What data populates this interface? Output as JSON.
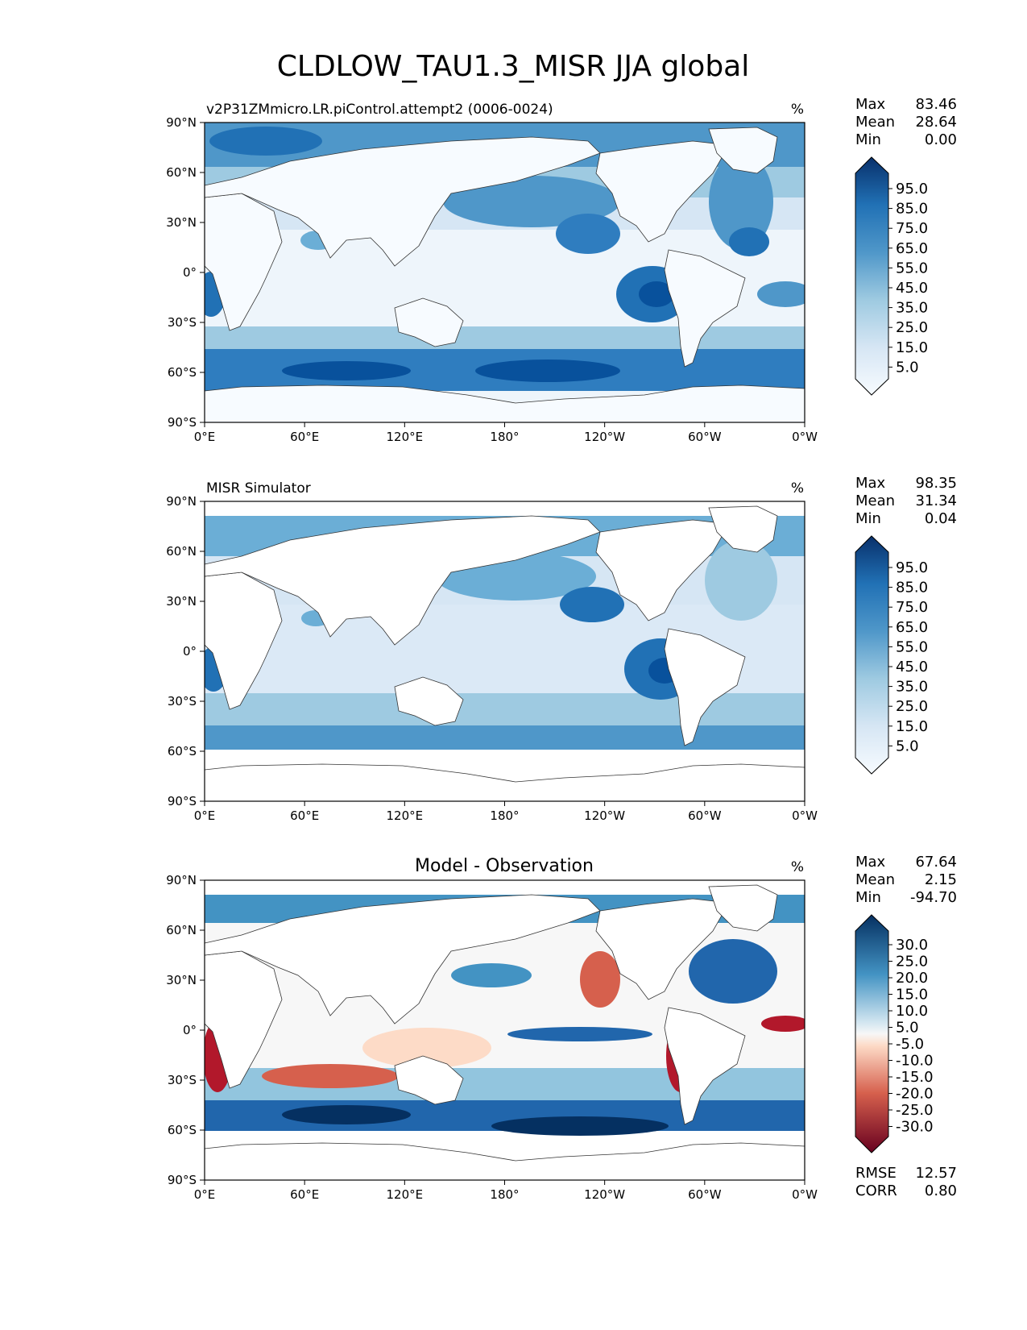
{
  "title": "CLDLOW_TAU1.3_MISR JJA global",
  "x_ticks": [
    "0°E",
    "60°E",
    "120°E",
    "180°",
    "120°W",
    "60°W",
    "0°W"
  ],
  "y_ticks": [
    "90°N",
    "60°N",
    "30°N",
    "0°",
    "30°S",
    "60°S",
    "90°S"
  ],
  "chart_data": [
    {
      "type": "heatmap",
      "panel": "test",
      "title": "v2P31ZMmicro.LR.piControl.attempt2 (0006-0024)",
      "units": "%",
      "stats": [
        [
          "Max",
          "83.46"
        ],
        [
          "Mean",
          "28.64"
        ],
        [
          "Min",
          "0.00"
        ]
      ],
      "colorbar": {
        "colormap": "Blues",
        "extend": "both",
        "ticks": [
          "95.0",
          "85.0",
          "75.0",
          "65.0",
          "55.0",
          "45.0",
          "35.0",
          "25.0",
          "15.0",
          "5.0"
        ]
      }
    },
    {
      "type": "heatmap",
      "panel": "reference",
      "title": "MISR Simulator",
      "units": "%",
      "stats": [
        [
          "Max",
          "98.35"
        ],
        [
          "Mean",
          "31.34"
        ],
        [
          "Min",
          "0.04"
        ]
      ],
      "colorbar": {
        "colormap": "Blues",
        "extend": "both",
        "ticks": [
          "95.0",
          "85.0",
          "75.0",
          "65.0",
          "55.0",
          "45.0",
          "35.0",
          "25.0",
          "15.0",
          "5.0"
        ]
      }
    },
    {
      "type": "heatmap",
      "panel": "difference",
      "title": "Model - Observation",
      "units": "%",
      "stats": [
        [
          "Max",
          "67.64"
        ],
        [
          "Mean",
          "2.15"
        ],
        [
          "Min",
          "-94.70"
        ]
      ],
      "metrics": [
        [
          "RMSE",
          "12.57"
        ],
        [
          "CORR",
          "0.80"
        ]
      ],
      "colorbar": {
        "colormap": "RdBu",
        "extend": "both",
        "ticks": [
          "30.0",
          "25.0",
          "20.0",
          "15.0",
          "10.0",
          "5.0",
          "-5.0",
          "-10.0",
          "-15.0",
          "-20.0",
          "-25.0",
          "-30.0"
        ]
      }
    }
  ]
}
